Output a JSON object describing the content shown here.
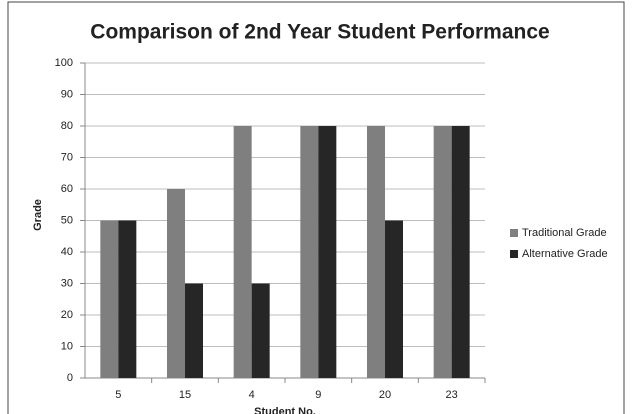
{
  "chart_data": {
    "type": "bar",
    "title": "Comparison of 2nd Year Student Performance",
    "x_label": "Student No.",
    "y_label": "Grade",
    "categories": [
      "5",
      "15",
      "4",
      "9",
      "20",
      "23"
    ],
    "series": [
      {
        "name": "Traditional Grade",
        "color": "#7f7f7f",
        "values": [
          50,
          60,
          80,
          80,
          80,
          80
        ]
      },
      {
        "name": "Alternative Grade",
        "color": "#262626",
        "values": [
          50,
          30,
          30,
          80,
          50,
          80
        ]
      }
    ],
    "ylim": [
      0,
      100
    ],
    "yticks": [
      0,
      10,
      20,
      30,
      40,
      50,
      60,
      70,
      80,
      90,
      100
    ],
    "grid": true,
    "legend": "right"
  }
}
